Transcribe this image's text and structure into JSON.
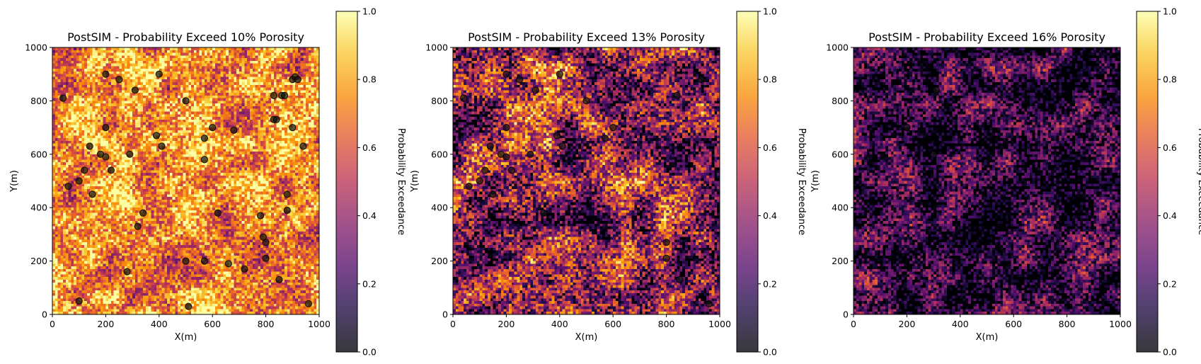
{
  "chart_data": [
    {
      "type": "heatmap",
      "title": "PostSIM - Probability Exceed 10% Porosity",
      "xlabel": "X(m)",
      "ylabel": "Y(m)",
      "xlim": [
        0,
        1000
      ],
      "ylim": [
        0,
        1000
      ],
      "xticks": [
        "0",
        "200",
        "400",
        "600",
        "800",
        "1000"
      ],
      "yticks": [
        "0",
        "200",
        "400",
        "600",
        "800",
        "1000"
      ],
      "colorbar": {
        "label": "Probability Exceedance",
        "range": [
          0.0,
          1.0
        ],
        "ticks": [
          "0.0",
          "0.2",
          "0.4",
          "0.6",
          "0.8",
          "1.0"
        ],
        "colormap": "inferno"
      },
      "grid_cells": [
        100,
        100
      ],
      "mean_probability": 0.74,
      "points": [
        [
          40,
          810
        ],
        [
          140,
          630
        ],
        [
          60,
          480
        ],
        [
          100,
          500
        ],
        [
          120,
          540
        ],
        [
          150,
          450
        ],
        [
          200,
          900
        ],
        [
          200,
          700
        ],
        [
          180,
          600
        ],
        [
          200,
          590
        ],
        [
          220,
          540
        ],
        [
          250,
          880
        ],
        [
          290,
          600
        ],
        [
          310,
          840
        ],
        [
          320,
          330
        ],
        [
          340,
          380
        ],
        [
          280,
          160
        ],
        [
          100,
          50
        ],
        [
          390,
          670
        ],
        [
          400,
          900
        ],
        [
          410,
          630
        ],
        [
          500,
          800
        ],
        [
          500,
          200
        ],
        [
          510,
          30
        ],
        [
          570,
          660
        ],
        [
          570,
          580
        ],
        [
          570,
          200
        ],
        [
          600,
          700
        ],
        [
          620,
          380
        ],
        [
          660,
          190
        ],
        [
          680,
          690
        ],
        [
          720,
          170
        ],
        [
          780,
          370
        ],
        [
          790,
          290
        ],
        [
          800,
          270
        ],
        [
          800,
          210
        ],
        [
          830,
          820
        ],
        [
          830,
          730
        ],
        [
          840,
          730
        ],
        [
          860,
          820
        ],
        [
          870,
          820
        ],
        [
          880,
          450
        ],
        [
          880,
          390
        ],
        [
          900,
          880
        ],
        [
          900,
          700
        ],
        [
          910,
          890
        ],
        [
          920,
          880
        ],
        [
          940,
          630
        ],
        [
          960,
          40
        ],
        [
          850,
          130
        ]
      ]
    },
    {
      "type": "heatmap",
      "title": "PostSIM - Probability Exceed 13% Porosity",
      "xlabel": "X(m)",
      "ylabel": "Y(m)",
      "xlim": [
        0,
        1000
      ],
      "ylim": [
        0,
        1000
      ],
      "xticks": [
        "0",
        "200",
        "400",
        "600",
        "800",
        "1000"
      ],
      "yticks": [
        "0",
        "200",
        "400",
        "600",
        "800",
        "1000"
      ],
      "colorbar": {
        "label": "Probability Exceedance",
        "range": [
          0.0,
          1.0
        ],
        "ticks": [
          "0.0",
          "0.2",
          "0.4",
          "0.6",
          "0.8",
          "1.0"
        ],
        "colormap": "inferno"
      },
      "grid_cells": [
        100,
        100
      ],
      "mean_probability": 0.38,
      "points": [
        [
          40,
          810
        ],
        [
          140,
          630
        ],
        [
          60,
          480
        ],
        [
          100,
          500
        ],
        [
          120,
          540
        ],
        [
          150,
          450
        ],
        [
          200,
          900
        ],
        [
          200,
          700
        ],
        [
          180,
          600
        ],
        [
          200,
          590
        ],
        [
          220,
          540
        ],
        [
          250,
          880
        ],
        [
          290,
          600
        ],
        [
          310,
          840
        ],
        [
          340,
          380
        ],
        [
          390,
          670
        ],
        [
          400,
          900
        ],
        [
          410,
          630
        ],
        [
          500,
          800
        ],
        [
          570,
          660
        ],
        [
          600,
          700
        ],
        [
          800,
          270
        ],
        [
          800,
          210
        ],
        [
          840,
          820
        ],
        [
          930,
          880
        ],
        [
          960,
          40
        ],
        [
          850,
          130
        ]
      ]
    },
    {
      "type": "heatmap",
      "title": "PostSIM - Probability Exceed 16% Porosity",
      "xlabel": "X(m)",
      "ylabel": "Y(m)",
      "xlim": [
        0,
        1000
      ],
      "ylim": [
        0,
        1000
      ],
      "xticks": [
        "0",
        "200",
        "400",
        "600",
        "800",
        "1000"
      ],
      "yticks": [
        "0",
        "200",
        "400",
        "600",
        "800",
        "1000"
      ],
      "colorbar": {
        "label": "Probability Exceedance",
        "range": [
          0.0,
          1.0
        ],
        "ticks": [
          "0.0",
          "0.2",
          "0.4",
          "0.6",
          "0.8",
          "1.0"
        ],
        "colormap": "inferno"
      },
      "grid_cells": [
        100,
        100
      ],
      "mean_probability": 0.17,
      "points": [
        [
          200,
          700
        ],
        [
          310,
          840
        ],
        [
          300,
          600
        ]
      ]
    }
  ]
}
